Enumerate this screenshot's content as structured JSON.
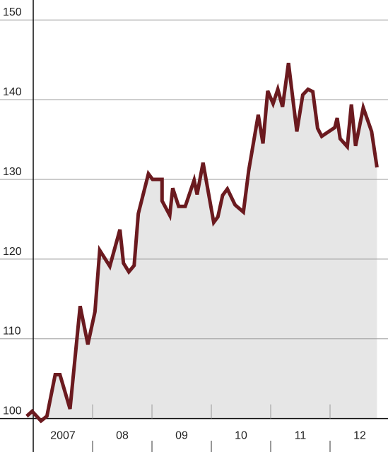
{
  "chart_data": {
    "type": "line",
    "color": "#6b1a1f",
    "area_color": "#e6e6e6",
    "grid": true,
    "xlim": [
      2006.44,
      2013.0
    ],
    "ylim": [
      95.8,
      152.5
    ],
    "yticks": [
      100,
      110,
      120,
      130,
      140,
      150
    ],
    "xticks": [
      {
        "value": 2007.5,
        "label": "2007"
      },
      {
        "value": 2008.5,
        "label": "08"
      },
      {
        "value": 2009.5,
        "label": "09"
      },
      {
        "value": 2010.5,
        "label": "10"
      },
      {
        "value": 2011.5,
        "label": "11"
      },
      {
        "value": 2012.5,
        "label": "12"
      }
    ],
    "x": [
      2006.89,
      2006.98,
      2007.13,
      2007.23,
      2007.37,
      2007.45,
      2007.62,
      2007.79,
      2007.92,
      2008.04,
      2008.12,
      2008.29,
      2008.46,
      2008.52,
      2008.61,
      2008.7,
      2008.77,
      2008.94,
      2009.01,
      2009.17,
      2009.17,
      2009.3,
      2009.35,
      2009.45,
      2009.56,
      2009.71,
      2009.76,
      2009.86,
      2010.04,
      2010.11,
      2010.19,
      2010.27,
      2010.4,
      2010.54,
      2010.63,
      2010.79,
      2010.87,
      2010.95,
      2011.04,
      2011.12,
      2011.2,
      2011.3,
      2011.44,
      2011.54,
      2011.63,
      2011.71,
      2011.79,
      2011.86,
      2012.08,
      2012.12,
      2012.17,
      2012.29,
      2012.36,
      2012.43,
      2012.56,
      2012.7,
      2012.79
    ],
    "values": [
      100.3,
      100.9,
      99.7,
      100.3,
      105.5,
      105.5,
      101.2,
      114.1,
      109.3,
      113.4,
      121.1,
      119.1,
      123.7,
      119.5,
      118.4,
      119.2,
      125.7,
      130.7,
      130.0,
      130.0,
      127.3,
      125.5,
      128.9,
      126.6,
      126.6,
      129.9,
      128.1,
      132.1,
      124.6,
      125.3,
      128.0,
      128.8,
      126.8,
      125.9,
      131.1,
      138.1,
      134.5,
      141.1,
      139.5,
      141.3,
      139.1,
      144.6,
      136.0,
      140.6,
      141.3,
      141.0,
      136.4,
      135.4,
      136.5,
      137.7,
      135.1,
      134.1,
      139.4,
      134.2,
      139.0,
      136.0,
      131.5
    ]
  }
}
